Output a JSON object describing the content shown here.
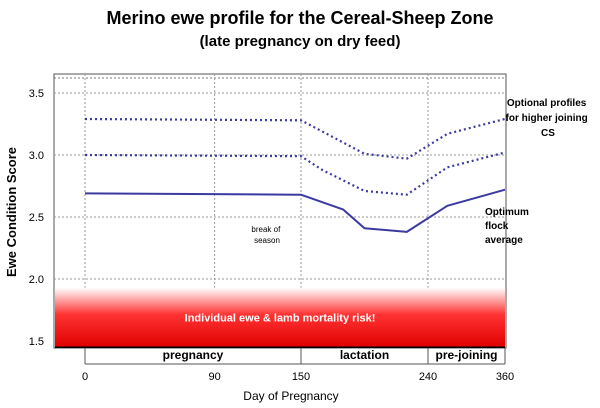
{
  "chart_data": {
    "type": "line",
    "title": "Merino ewe profile for the Cereal-Sheep Zone",
    "subtitle": "(late pregnancy on dry feed)",
    "xlabel": "Day of Pregnancy",
    "ylabel": "Ewe Condition Score",
    "xlim": [
      0,
      360
    ],
    "ylim": [
      1.4,
      3.6
    ],
    "x_ticks": [
      "0",
      "90",
      "150",
      "240",
      "360"
    ],
    "y_ticks": [
      "1.5",
      "2.0",
      "2.5",
      "3.0",
      "3.5"
    ],
    "series": [
      {
        "style": "solid",
        "color": "#3a3aa0",
        "x": [
          0,
          150,
          180,
          195,
          225,
          270,
          360
        ],
        "y": [
          2.69,
          2.68,
          2.56,
          2.41,
          2.38,
          2.59,
          2.72
        ]
      },
      {
        "style": "dotted",
        "color": "#3a3aa0",
        "x": [
          0,
          150,
          165,
          195,
          225,
          270,
          360
        ],
        "y": [
          3.0,
          2.99,
          2.88,
          2.71,
          2.68,
          2.9,
          3.02
        ]
      },
      {
        "style": "dotted",
        "color": "#3a3aa0",
        "x": [
          0,
          150,
          165,
          195,
          225,
          270,
          360
        ],
        "y": [
          3.29,
          3.28,
          3.19,
          3.01,
          2.97,
          3.17,
          3.29
        ]
      }
    ],
    "phases": [
      {
        "label": "pregnancy",
        "start": 0,
        "end": 150
      },
      {
        "label": "lactation",
        "start": 150,
        "end": 240
      },
      {
        "label": "pre-joining",
        "start": 240,
        "end": 360
      }
    ],
    "risk_zone": {
      "label": "Individual ewe & lamb mortality risk!",
      "from": 1.45,
      "to": 1.93
    },
    "annotations": {
      "optional": [
        "Optional profiles",
        "for higher joining",
        "CS"
      ],
      "optimum": [
        "Optimum",
        "flock",
        "average"
      ],
      "break": [
        "break of",
        "season"
      ]
    },
    "grid": true,
    "colors": {
      "line": "#3a3aa0",
      "risk_top": "#ffffff",
      "risk_mid": "#ff3333",
      "risk_bottom": "#e00000"
    }
  }
}
